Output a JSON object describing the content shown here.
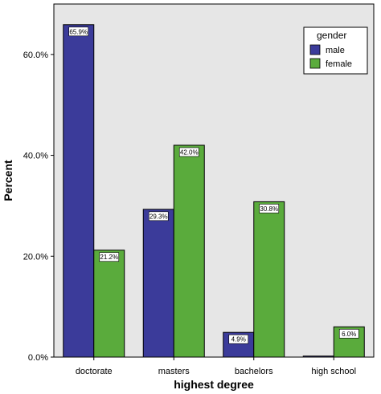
{
  "chart_data": {
    "type": "bar",
    "title": "",
    "xlabel": "highest degree",
    "ylabel": "Percent",
    "categories": [
      "doctorate",
      "masters",
      "bachelors",
      "high school"
    ],
    "series": [
      {
        "name": "male",
        "color": "#3b3b9a",
        "values": [
          65.9,
          29.3,
          4.9,
          0.2
        ],
        "labels": [
          "65.9%",
          "29.3%",
          "4.9%",
          ""
        ]
      },
      {
        "name": "female",
        "color": "#5aab3c",
        "values": [
          21.2,
          42.0,
          30.8,
          6.0
        ],
        "labels": [
          "21.2%",
          "42.0%",
          "30.8%",
          "6.0%"
        ]
      }
    ],
    "ylim": [
      0,
      70
    ],
    "yticks": [
      0,
      20,
      40,
      60
    ],
    "ytick_labels": [
      "0.0%",
      "20.0%",
      "40.0%",
      "60.0%"
    ],
    "legend": {
      "title": "gender",
      "position": "top-right"
    },
    "plot_background": "#e6e6e6",
    "grid": false
  }
}
